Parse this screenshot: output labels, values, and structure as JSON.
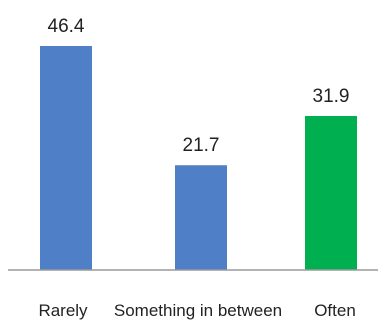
{
  "chart_data": {
    "type": "bar",
    "title": "",
    "xlabel": "",
    "ylabel": "",
    "categories": [
      "Rarely",
      "Something in between",
      "Often"
    ],
    "values": [
      46.4,
      21.7,
      31.9
    ],
    "data_labels": [
      "46.4",
      "21.7",
      "31.9"
    ],
    "colors": [
      "#4f7fc7",
      "#4f7fc7",
      "#00b050"
    ],
    "axis_color": "#9a9a9a",
    "ylim": [
      0,
      50
    ],
    "grid": false,
    "legend": "none"
  }
}
